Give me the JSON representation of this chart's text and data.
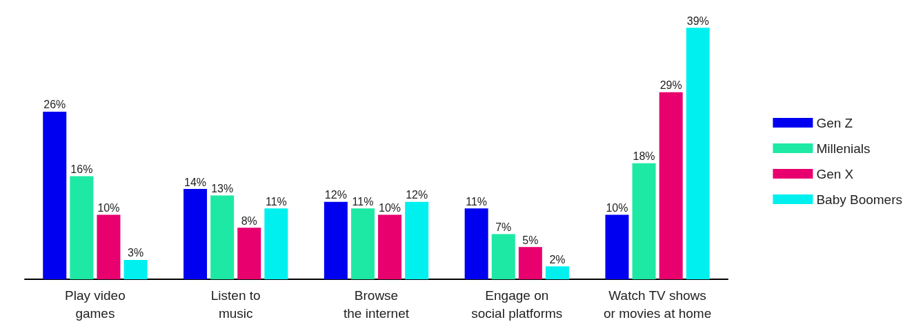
{
  "chart_data": {
    "type": "bar",
    "categories": [
      "Play video\ngames",
      "Listen to\nmusic",
      "Browse\nthe internet",
      "Engage on\nsocial platforms",
      "Watch TV shows\nor movies at home"
    ],
    "series": [
      {
        "name": "Gen Z",
        "color": "#0000f0",
        "values": [
          26,
          14,
          12,
          11,
          10
        ],
        "value_labels": [
          "26%",
          "14%",
          "12%",
          "11%",
          "10%"
        ]
      },
      {
        "name": "Millenials",
        "color": "#1de9a4",
        "values": [
          16,
          13,
          11,
          7,
          18
        ],
        "value_labels": [
          "16%",
          "13%",
          "11%",
          "7%",
          "18%"
        ]
      },
      {
        "name": "Gen X",
        "color": "#e8006e",
        "values": [
          10,
          8,
          10,
          5,
          29
        ],
        "value_labels": [
          "10%",
          "8%",
          "10%",
          "5%",
          "29%"
        ]
      },
      {
        "name": "Baby Boomers",
        "color": "#00f0f0",
        "values": [
          3,
          11,
          12,
          2,
          39
        ],
        "value_labels": [
          "3%",
          "11%",
          "12%",
          "2%",
          "39%"
        ]
      }
    ],
    "legend": "right"
  }
}
